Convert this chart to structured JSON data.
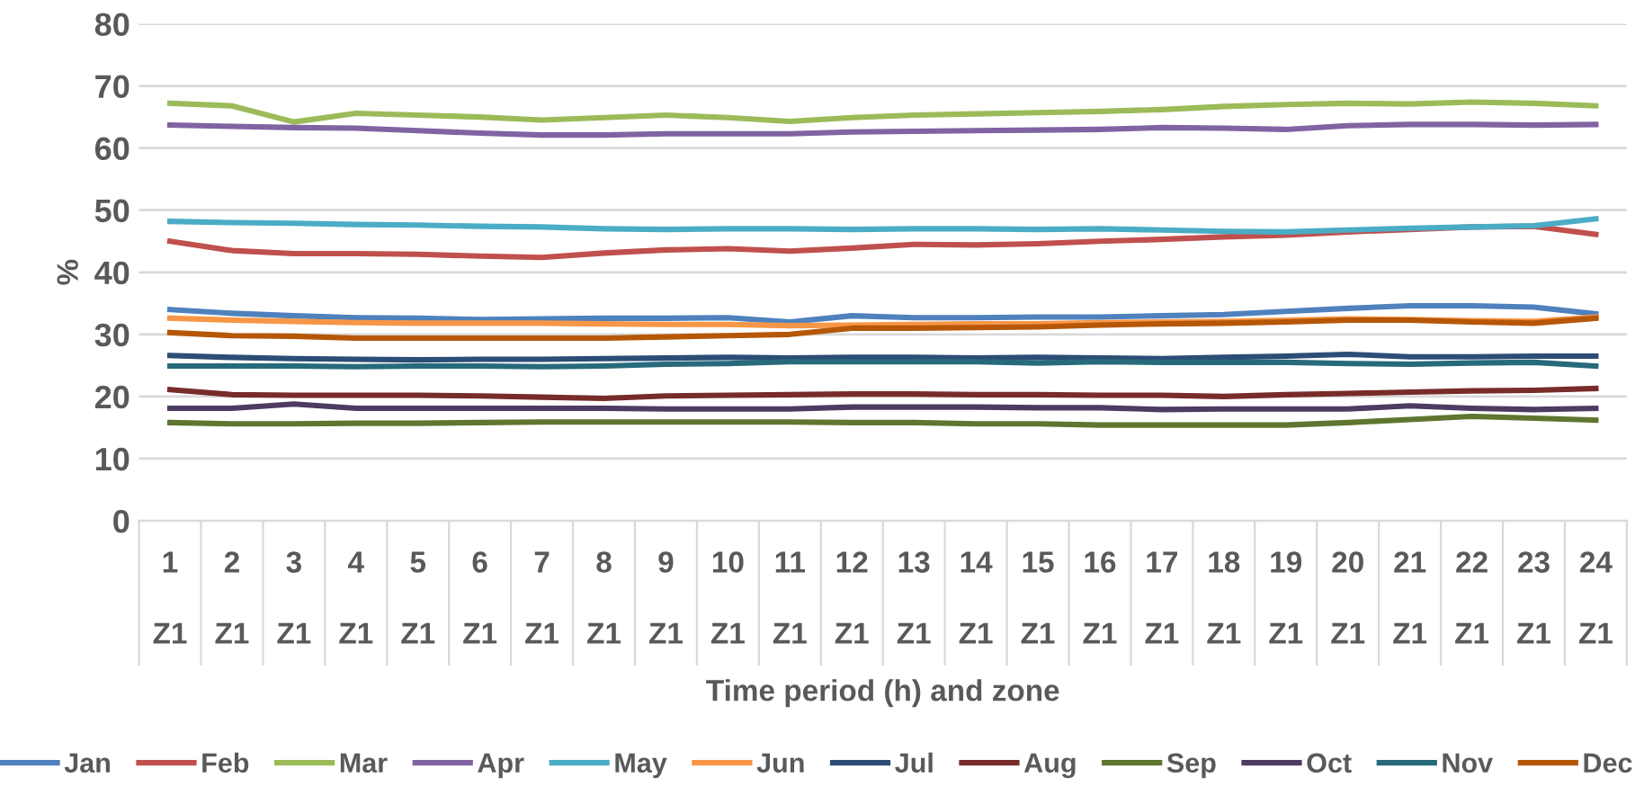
{
  "chart_data": {
    "type": "line",
    "xlabel": "Time period (h) and zone",
    "ylabel": "%",
    "categories": [
      "1\n\nZ1",
      "2\n\nZ1",
      "3\n\nZ1",
      "4\n\nZ1",
      "5\n\nZ1",
      "6\n\nZ1",
      "7\n\nZ1",
      "8\n\nZ1",
      "9\n\nZ1",
      "10\n\nZ1",
      "11\n\nZ1",
      "12\n\nZ1",
      "13\n\nZ1",
      "14\n\nZ1",
      "15\n\nZ1",
      "16\n\nZ1",
      "17\n\nZ1",
      "18\n\nZ1",
      "19\n\nZ1",
      "20\n\nZ1",
      "21\n\nZ1",
      "22\n\nZ1",
      "23\n\nZ1",
      "24\n\nZ1"
    ],
    "ylim": [
      0,
      80
    ],
    "yticks": [
      0,
      10,
      20,
      30,
      40,
      50,
      60,
      70,
      80
    ],
    "grid": "y",
    "legend": "bottom",
    "marker": "none",
    "line_style": "solid",
    "series": [
      {
        "name": "Jan",
        "color": "#4f81bd",
        "values": [
          34.0,
          33.4,
          33.0,
          32.7,
          32.6,
          32.4,
          32.5,
          32.6,
          32.6,
          32.7,
          32.0,
          33.0,
          32.7,
          32.7,
          32.8,
          32.8,
          33.0,
          33.2,
          33.7,
          34.2,
          34.6,
          34.6,
          34.4,
          33.3
        ]
      },
      {
        "name": "Feb",
        "color": "#c0504d",
        "values": [
          45.0,
          43.5,
          43.0,
          43.0,
          42.9,
          42.6,
          42.4,
          43.1,
          43.6,
          43.8,
          43.4,
          43.9,
          44.5,
          44.4,
          44.6,
          45.0,
          45.3,
          45.7,
          46.0,
          46.5,
          46.9,
          47.3,
          47.4,
          46.1
        ]
      },
      {
        "name": "Mar",
        "color": "#9bbb59",
        "values": [
          67.2,
          66.8,
          64.2,
          65.6,
          65.3,
          65.0,
          64.5,
          64.9,
          65.3,
          64.9,
          64.3,
          64.9,
          65.3,
          65.5,
          65.7,
          65.9,
          66.2,
          66.7,
          67.0,
          67.2,
          67.1,
          67.4,
          67.2,
          66.8
        ]
      },
      {
        "name": "Apr",
        "color": "#8064a2",
        "values": [
          63.7,
          63.5,
          63.3,
          63.2,
          62.8,
          62.4,
          62.1,
          62.1,
          62.3,
          62.3,
          62.3,
          62.6,
          62.7,
          62.8,
          62.9,
          63.0,
          63.3,
          63.2,
          63.0,
          63.6,
          63.8,
          63.8,
          63.7,
          63.8
        ]
      },
      {
        "name": "May",
        "color": "#4bacc6",
        "values": [
          48.2,
          48.0,
          47.9,
          47.7,
          47.6,
          47.4,
          47.3,
          47.0,
          46.9,
          47.0,
          47.0,
          46.9,
          47.0,
          47.0,
          46.9,
          47.0,
          46.8,
          46.6,
          46.5,
          46.8,
          47.1,
          47.3,
          47.5,
          48.6
        ]
      },
      {
        "name": "Jun",
        "color": "#f79646",
        "values": [
          32.6,
          32.3,
          32.1,
          31.9,
          31.8,
          31.8,
          31.8,
          31.7,
          31.6,
          31.6,
          31.4,
          31.5,
          31.6,
          31.7,
          31.7,
          31.9,
          32.0,
          32.1,
          32.3,
          32.5,
          32.4,
          32.2,
          32.1,
          32.8
        ]
      },
      {
        "name": "Jul",
        "color": "#2c4d75",
        "values": [
          26.6,
          26.3,
          26.1,
          26.0,
          25.9,
          26.0,
          26.0,
          26.1,
          26.2,
          26.3,
          26.2,
          26.3,
          26.3,
          26.2,
          26.3,
          26.2,
          26.1,
          26.3,
          26.5,
          26.8,
          26.4,
          26.4,
          26.5,
          26.5
        ]
      },
      {
        "name": "Aug",
        "color": "#772c2a",
        "values": [
          21.1,
          20.3,
          20.2,
          20.2,
          20.2,
          20.1,
          19.9,
          19.7,
          20.1,
          20.2,
          20.3,
          20.4,
          20.4,
          20.3,
          20.3,
          20.2,
          20.2,
          20.0,
          20.3,
          20.5,
          20.7,
          20.9,
          21.0,
          21.3
        ]
      },
      {
        "name": "Sep",
        "color": "#5f7530",
        "values": [
          15.8,
          15.6,
          15.6,
          15.7,
          15.7,
          15.8,
          15.9,
          15.9,
          15.9,
          15.9,
          15.9,
          15.8,
          15.8,
          15.6,
          15.6,
          15.4,
          15.4,
          15.4,
          15.4,
          15.8,
          16.3,
          16.8,
          16.5,
          16.2
        ]
      },
      {
        "name": "Oct",
        "color": "#4d3b62",
        "values": [
          18.1,
          18.1,
          18.8,
          18.1,
          18.1,
          18.1,
          18.1,
          18.1,
          18.0,
          18.0,
          18.0,
          18.3,
          18.3,
          18.3,
          18.2,
          18.2,
          17.9,
          18.0,
          18.0,
          18.0,
          18.5,
          18.1,
          17.9,
          18.1
        ]
      },
      {
        "name": "Nov",
        "color": "#276a7c",
        "values": [
          24.9,
          24.9,
          24.9,
          24.8,
          24.9,
          24.9,
          24.8,
          24.9,
          25.2,
          25.3,
          25.6,
          25.6,
          25.6,
          25.6,
          25.4,
          25.6,
          25.5,
          25.5,
          25.5,
          25.3,
          25.2,
          25.4,
          25.5,
          24.9
        ]
      },
      {
        "name": "Dec",
        "color": "#b65708",
        "values": [
          30.3,
          29.8,
          29.7,
          29.4,
          29.4,
          29.4,
          29.4,
          29.4,
          29.6,
          29.8,
          30.0,
          31.0,
          31.0,
          31.1,
          31.2,
          31.5,
          31.7,
          31.8,
          32.0,
          32.3,
          32.3,
          32.0,
          31.8,
          32.6
        ]
      }
    ]
  }
}
